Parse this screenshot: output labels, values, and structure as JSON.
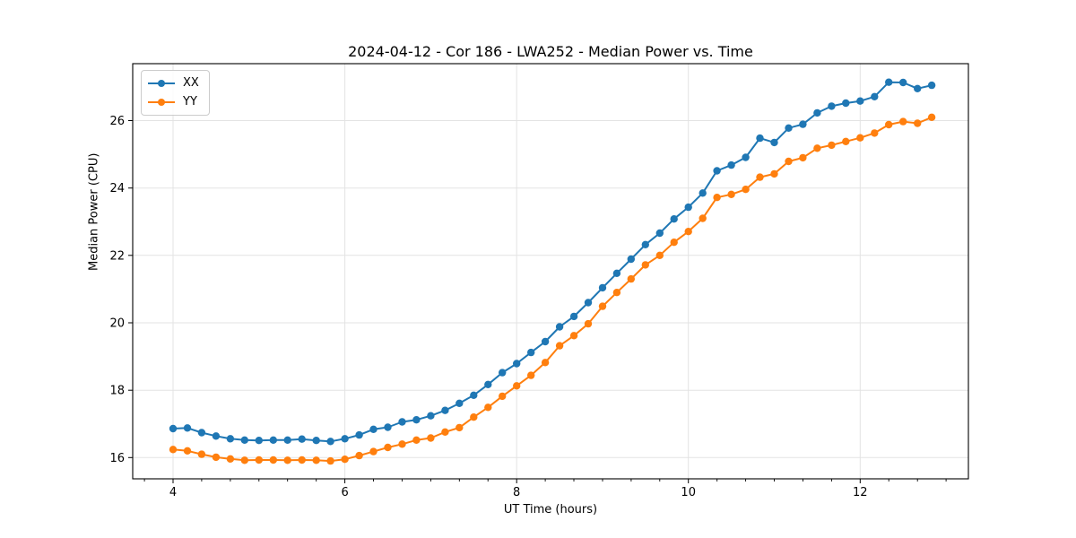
{
  "chart_data": {
    "type": "line",
    "title": "2024-04-12 - Cor 186 - LWA252 - Median Power vs. Time",
    "xlabel": "UT Time (hours)",
    "ylabel": "Median Power (CPU)",
    "legend_position": "upper left",
    "grid": true,
    "grid_color": "#e3e3e3",
    "spine_color": "#000000",
    "xlim": [
      3.53,
      13.26
    ],
    "ylim": [
      15.37,
      27.69
    ],
    "xticks": [
      4,
      6,
      8,
      10,
      12
    ],
    "yticks": [
      16,
      18,
      20,
      22,
      24,
      26
    ],
    "x_minor_step": 0.3333,
    "x": [
      4.0,
      4.167,
      4.333,
      4.5,
      4.667,
      4.833,
      5.0,
      5.167,
      5.333,
      5.5,
      5.667,
      5.833,
      6.0,
      6.167,
      6.333,
      6.5,
      6.667,
      6.833,
      7.0,
      7.167,
      7.333,
      7.5,
      7.667,
      7.833,
      8.0,
      8.167,
      8.333,
      8.5,
      8.667,
      8.833,
      9.0,
      9.167,
      9.333,
      9.5,
      9.667,
      9.833,
      10.0,
      10.167,
      10.333,
      10.5,
      10.667,
      10.833,
      11.0,
      11.167,
      11.333,
      11.5,
      11.667,
      11.833,
      12.0,
      12.167,
      12.333,
      12.5,
      12.667,
      12.833
    ],
    "series": [
      {
        "name": "XX",
        "color": "#1f77b4",
        "marker": "circle",
        "values": [
          16.86,
          16.88,
          16.74,
          16.64,
          16.56,
          16.52,
          16.51,
          16.52,
          16.52,
          16.55,
          16.51,
          16.48,
          16.56,
          16.67,
          16.84,
          16.9,
          17.06,
          17.12,
          17.24,
          17.4,
          17.61,
          17.85,
          18.17,
          18.52,
          18.79,
          19.12,
          19.44,
          19.88,
          20.19,
          20.6,
          21.04,
          21.47,
          21.89,
          22.32,
          22.66,
          23.08,
          23.43,
          23.85,
          24.51,
          24.68,
          24.91,
          25.48,
          25.35,
          25.78,
          25.89,
          26.23,
          26.43,
          26.52,
          26.58,
          26.71,
          27.14,
          27.13,
          26.95,
          27.05
        ]
      },
      {
        "name": "YY",
        "color": "#ff7f0e",
        "marker": "circle",
        "values": [
          16.24,
          16.2,
          16.1,
          16.01,
          15.96,
          15.92,
          15.93,
          15.93,
          15.92,
          15.93,
          15.92,
          15.9,
          15.95,
          16.06,
          16.18,
          16.3,
          16.4,
          16.52,
          16.58,
          16.76,
          16.89,
          17.2,
          17.49,
          17.82,
          18.13,
          18.44,
          18.82,
          19.32,
          19.62,
          19.97,
          20.49,
          20.9,
          21.3,
          21.72,
          22.0,
          22.39,
          22.71,
          23.1,
          23.72,
          23.81,
          23.96,
          24.32,
          24.42,
          24.79,
          24.9,
          25.18,
          25.27,
          25.38,
          25.49,
          25.63,
          25.88,
          25.97,
          25.92,
          26.1
        ]
      }
    ]
  }
}
